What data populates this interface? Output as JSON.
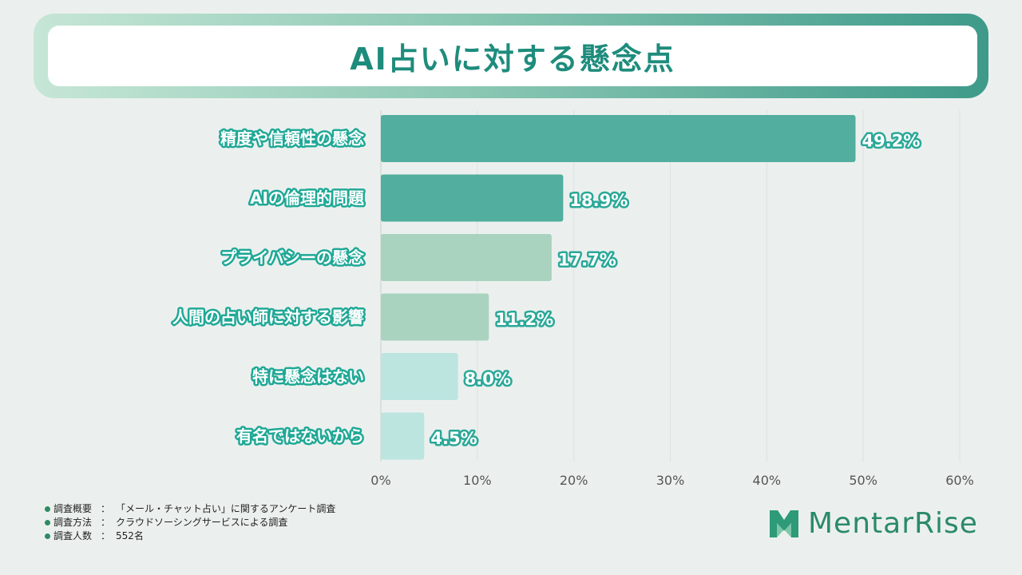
{
  "title": "AI占いに対する懸念点",
  "chart_data": {
    "type": "bar",
    "orientation": "horizontal",
    "categories": [
      "精度や信頼性の懸念",
      "AIの倫理的問題",
      "プライバシーの懸念",
      "人間の占い師に対する影響",
      "特に懸念はない",
      "有名ではないから"
    ],
    "values": [
      49.2,
      18.9,
      17.7,
      11.2,
      8.0,
      4.5
    ],
    "value_labels": [
      "49.2%",
      "18.9%",
      "17.7%",
      "11.2%",
      "8.0%",
      "4.5%"
    ],
    "bar_colors": [
      "#52ae9f",
      "#52ae9f",
      "#a9d3bf",
      "#a9d3bf",
      "#bce5e0",
      "#bce5e0"
    ],
    "xlim": [
      0,
      60
    ],
    "ticks": [
      0,
      10,
      20,
      30,
      40,
      50,
      60
    ],
    "tick_labels": [
      "0%",
      "10%",
      "20%",
      "30%",
      "40%",
      "50%",
      "60%"
    ],
    "grid": true
  },
  "notes": [
    {
      "label": "調査概要",
      "sep": "：",
      "value": "「メール・チャット占い」に関するアンケート調査"
    },
    {
      "label": "調査方法",
      "sep": "：",
      "value": "クラウドソーシングサービスによる調査"
    },
    {
      "label": "調査人数",
      "sep": "：",
      "value": "552名"
    }
  ],
  "logo": {
    "text": "MentarRise",
    "color": "#2b8a6a"
  }
}
